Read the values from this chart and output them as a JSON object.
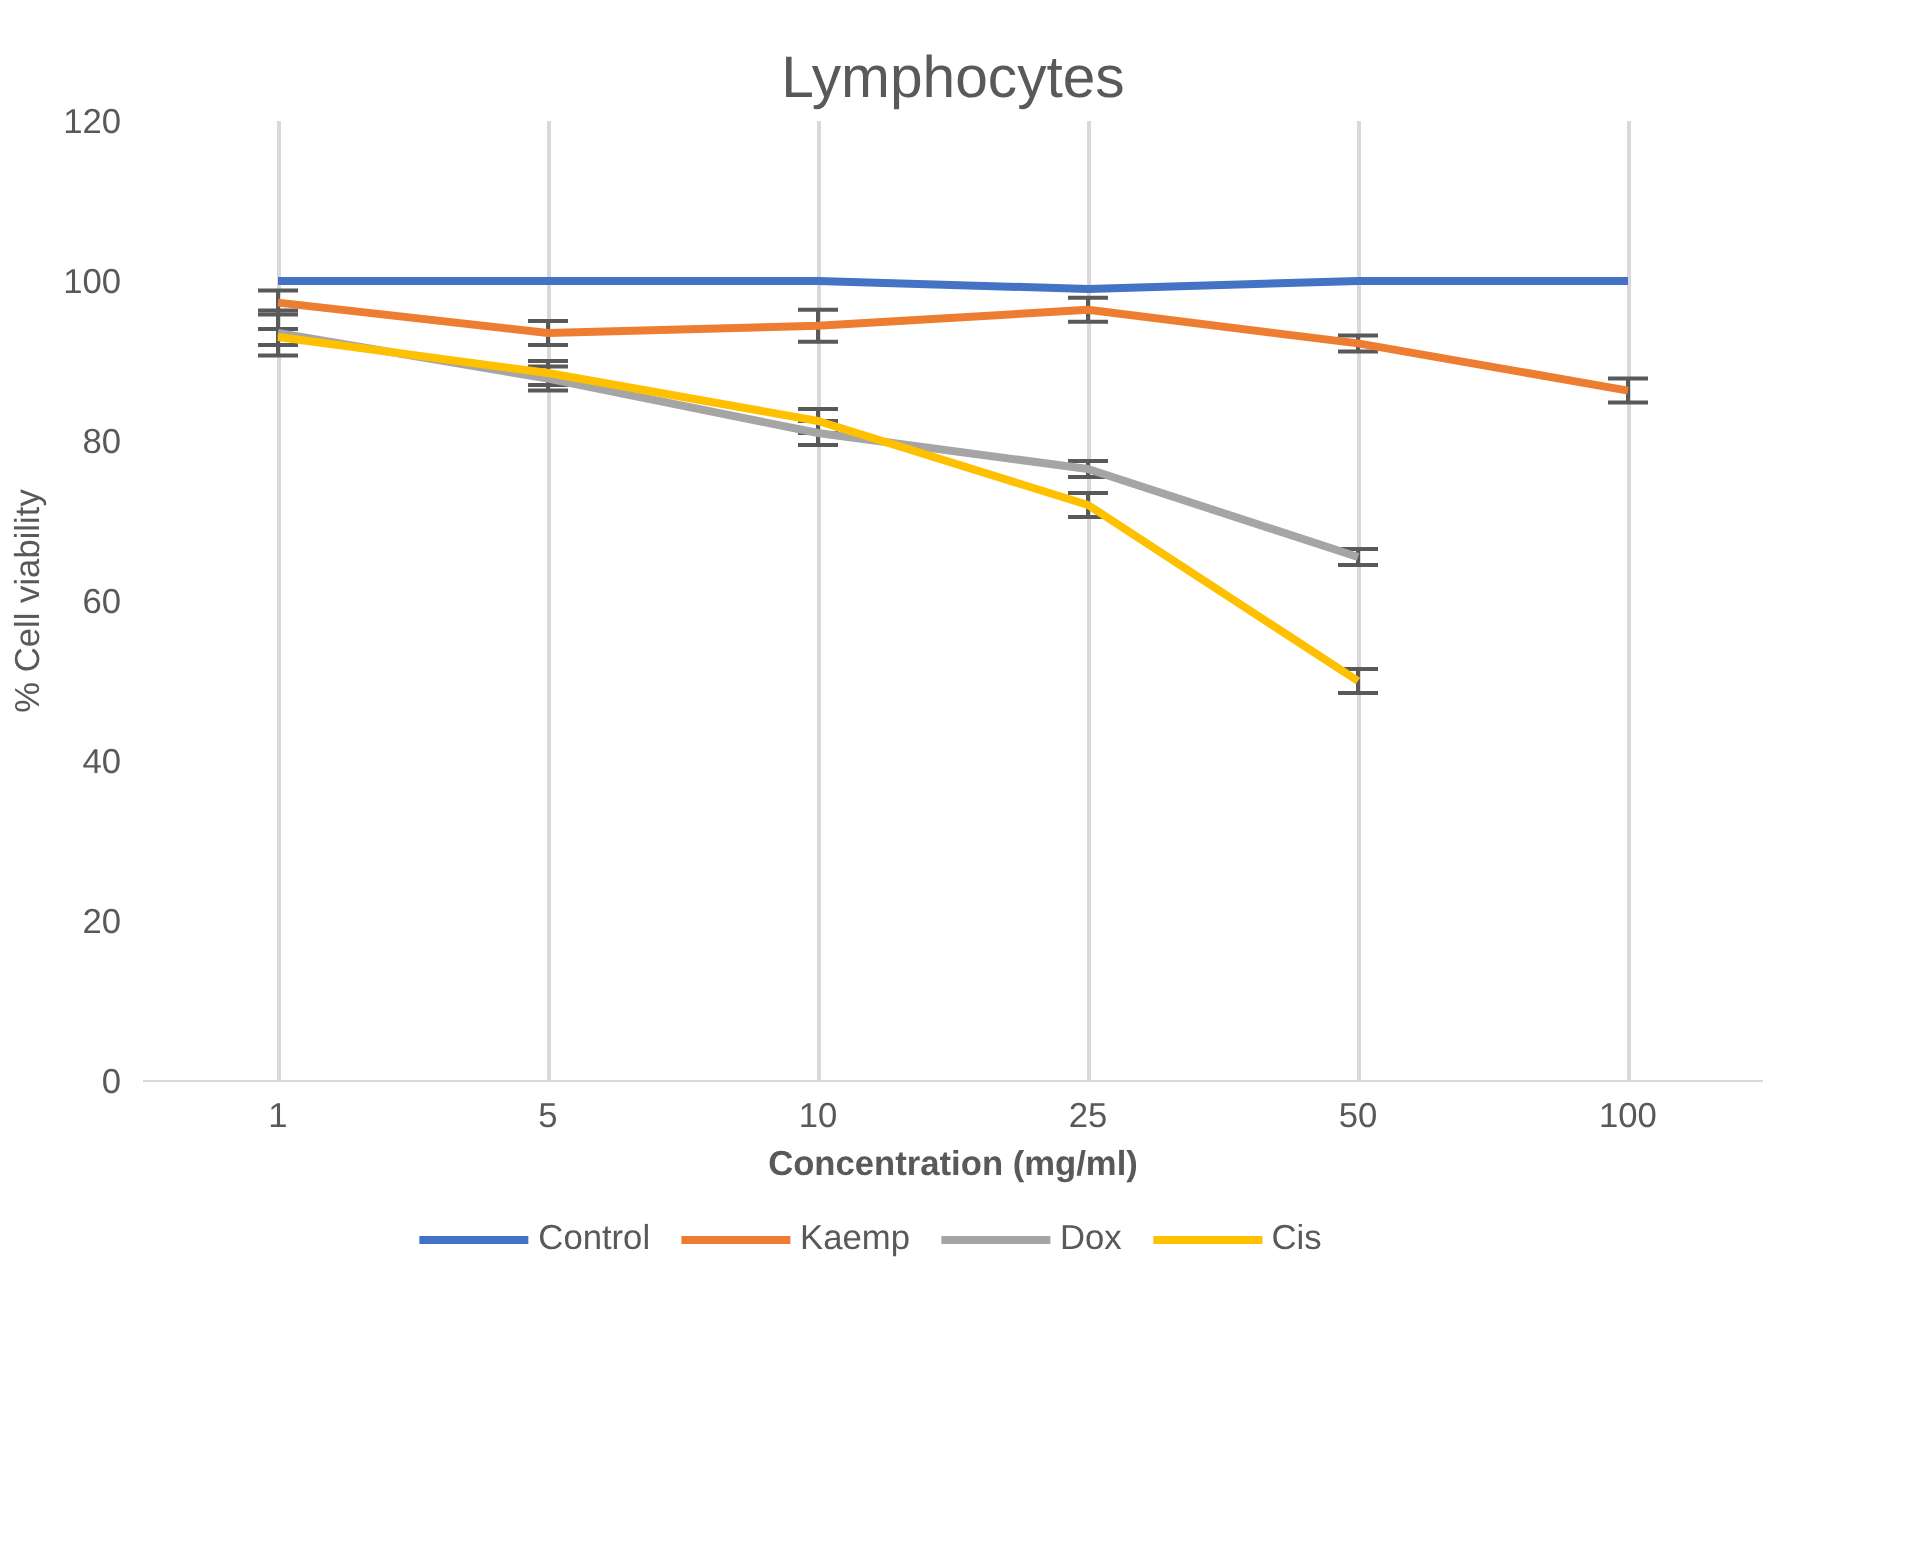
{
  "chart_data": {
    "type": "line",
    "title": "Lymphocytes",
    "xlabel": "Concentration (mg/ml)",
    "ylabel": "% Cell viability",
    "categories": [
      "1",
      "5",
      "10",
      "25",
      "50",
      "100"
    ],
    "series": [
      {
        "name": "Control",
        "color": "#4472c4",
        "values": [
          100,
          100,
          100,
          99,
          100,
          100
        ]
      },
      {
        "name": "Kaemp",
        "color": "#ed7d31",
        "values": [
          97.3,
          93.5,
          94.4,
          96.4,
          92.2,
          86.3
        ],
        "errors": [
          1.5,
          1.5,
          2,
          1.5,
          1,
          1.5
        ]
      },
      {
        "name": "Dox",
        "color": "#a5a5a5",
        "values": [
          93.5,
          87.8,
          81,
          76.5,
          65.5,
          null
        ],
        "errors": [
          2.8,
          1.5,
          1.5,
          1,
          1,
          null
        ]
      },
      {
        "name": "Cis",
        "color": "#ffc000",
        "values": [
          93,
          88.5,
          82.5,
          72,
          50,
          null
        ],
        "errors": [
          1,
          1.5,
          1.5,
          1.5,
          1.5,
          null
        ]
      }
    ],
    "ylim": [
      0,
      120
    ],
    "yticks": [
      0,
      20,
      40,
      60,
      80,
      100,
      120
    ],
    "grid": "x",
    "legend": "bottom",
    "marker": "none",
    "line_style": "solid"
  }
}
